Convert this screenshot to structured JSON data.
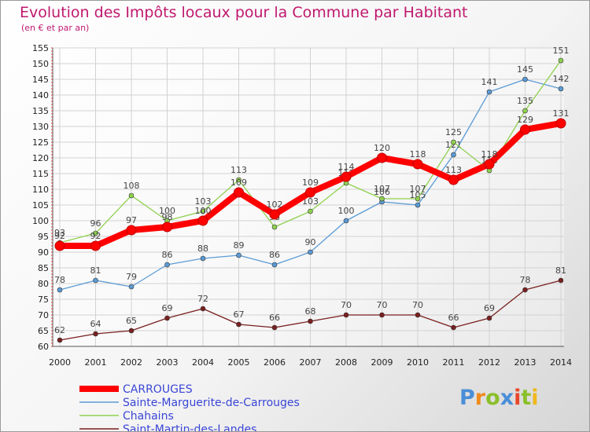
{
  "header": {
    "title": "Evolution des Impôts locaux pour la Commune par Habitant",
    "subtitle": "(en € et par an)"
  },
  "logo": {
    "text": "Proxiti",
    "letter_colors": [
      "#4a8ed8",
      "#f08a1c",
      "#8bbf2a",
      "#4a8ed8",
      "#e8462a",
      "#8bbf2a",
      "#f0b81c"
    ]
  },
  "chart_data": {
    "type": "line",
    "title": "Evolution des Impôts locaux pour la Commune par Habitant",
    "subtitle": "(en € et par an)",
    "xlabel": "",
    "ylabel": "",
    "x": [
      "2000",
      "2001",
      "2002",
      "2003",
      "2004",
      "2005",
      "2006",
      "2007",
      "2008",
      "2009",
      "2010",
      "2011",
      "2012",
      "2013",
      "2014"
    ],
    "ylim": [
      60,
      155
    ],
    "yticks": [
      60,
      65,
      70,
      75,
      80,
      85,
      90,
      95,
      100,
      105,
      110,
      115,
      120,
      125,
      130,
      135,
      140,
      145,
      150,
      155
    ],
    "grid": true,
    "legend_position": "bottom-left",
    "series": [
      {
        "name": "CARROUGES",
        "color": "#ff0000",
        "emphasis": true,
        "values": [
          92,
          92,
          97,
          98,
          100,
          109,
          102,
          109,
          114,
          120,
          118,
          113,
          118,
          129,
          131
        ]
      },
      {
        "name": "Sainte-Marguerite-de-Carrouges",
        "color": "#5b9bd5",
        "emphasis": false,
        "values": [
          78,
          81,
          79,
          86,
          88,
          89,
          86,
          90,
          100,
          106,
          105,
          121,
          141,
          145,
          142
        ]
      },
      {
        "name": "Chahains",
        "color": "#8fd14f",
        "emphasis": false,
        "values": [
          93,
          96,
          108,
          100,
          103,
          113,
          98,
          103,
          112,
          107,
          107,
          125,
          116,
          135,
          151
        ]
      },
      {
        "name": "Saint-Martin-des-Landes",
        "color": "#7a1f1f",
        "emphasis": false,
        "values": [
          62,
          64,
          65,
          69,
          72,
          67,
          66,
          68,
          70,
          70,
          70,
          66,
          69,
          78,
          81
        ]
      }
    ]
  }
}
